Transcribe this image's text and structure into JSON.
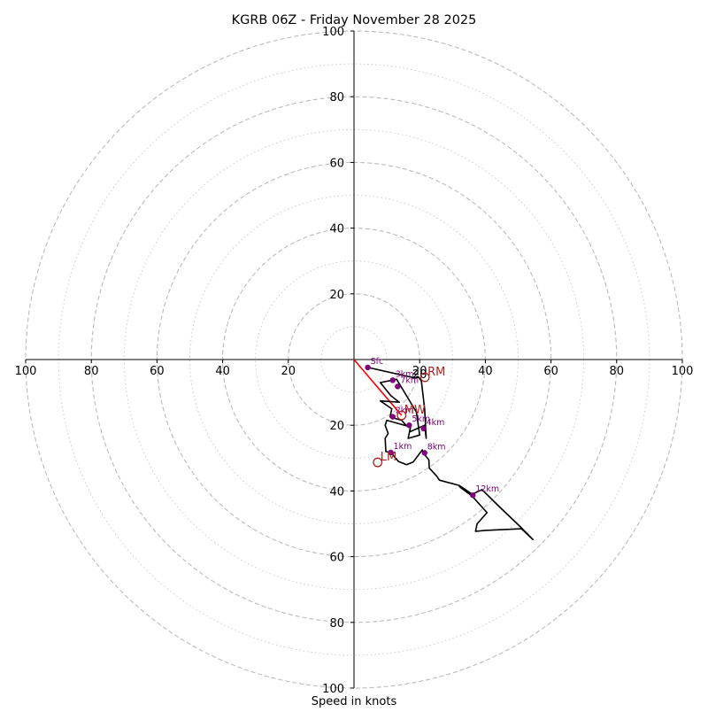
{
  "chart_data": {
    "type": "line",
    "title": "KGRB 06Z - Friday November 28 2025",
    "xlabel": "Speed in knots",
    "ylabel": "",
    "xlim": [
      -100,
      100
    ],
    "ylim": [
      -100,
      100
    ],
    "rings": [
      20,
      40,
      60,
      80,
      100
    ],
    "minor_rings": [
      10,
      30,
      50,
      70,
      90
    ],
    "axis_ticks": {
      "x_left": [
        "100",
        "80",
        "60",
        "40",
        "20"
      ],
      "x_right": [
        "20",
        "40",
        "60",
        "80",
        "100"
      ],
      "y_top": [
        "100",
        "80",
        "60",
        "40",
        "20"
      ],
      "y_bottom": [
        "20",
        "40",
        "60",
        "80",
        "100"
      ],
      "x_values_left": [
        -100,
        -80,
        -60,
        -40,
        -20
      ],
      "x_values_right": [
        20,
        40,
        60,
        80,
        100
      ],
      "y_values_top": [
        100,
        80,
        60,
        40,
        20
      ],
      "y_values_bottom": [
        -20,
        -40,
        -60,
        -80,
        -100
      ],
      "center_label": "20"
    },
    "series": [
      {
        "name": "hodograph",
        "color": "#000000",
        "points": [
          [
            4.2,
            -2.4
          ],
          [
            18.5,
            -5.6
          ],
          [
            19.5,
            -5.2
          ],
          [
            20.5,
            -6.5
          ],
          [
            21.5,
            -15
          ],
          [
            22,
            -24
          ],
          [
            21.5,
            -20
          ],
          [
            17,
            -22
          ],
          [
            17.2,
            -20.5
          ],
          [
            16.5,
            -24
          ],
          [
            20,
            -23
          ],
          [
            19,
            -16
          ],
          [
            13,
            -6
          ],
          [
            8,
            -7
          ],
          [
            11.2,
            -11
          ],
          [
            13.8,
            -13
          ],
          [
            8,
            -12.6
          ],
          [
            11.5,
            -15
          ],
          [
            11,
            -17.5
          ],
          [
            14.5,
            -18.5
          ],
          [
            16,
            -20.2
          ],
          [
            10,
            -18.5
          ],
          [
            9.5,
            -20
          ],
          [
            10.4,
            -22.5
          ],
          [
            9.5,
            -24
          ],
          [
            9.7,
            -28
          ],
          [
            11.2,
            -28.3
          ],
          [
            13.5,
            -31
          ],
          [
            16,
            -32
          ],
          [
            18,
            -31.2
          ],
          [
            20.8,
            -27.5
          ],
          [
            21,
            -28.3
          ],
          [
            22.8,
            -30.5
          ],
          [
            22.9,
            -33
          ],
          [
            25.2,
            -35.5
          ],
          [
            26,
            -36.7
          ],
          [
            32,
            -38.3
          ],
          [
            36,
            -41
          ],
          [
            39,
            -39.6
          ],
          [
            44.5,
            -45
          ],
          [
            51,
            -51.2
          ],
          [
            54.5,
            -54.8
          ],
          [
            51,
            -51.5
          ],
          [
            40,
            -52
          ],
          [
            37,
            -52.3
          ],
          [
            37.5,
            -50
          ],
          [
            40.5,
            -46.6
          ],
          [
            36,
            -41.6
          ],
          [
            32,
            -38.6
          ]
        ]
      }
    ],
    "points": [
      {
        "label": "Sfc",
        "x": 4.2,
        "y": -2.4
      },
      {
        "label": "3km",
        "x": 11.8,
        "y": -6.3
      },
      {
        "label": "7km",
        "x": 13.3,
        "y": -8.2
      },
      {
        "label": "2km",
        "x": 11.8,
        "y": -17.4
      },
      {
        "label": "5km",
        "x": 16.8,
        "y": -20.0
      },
      {
        "label": "4km",
        "x": 21.2,
        "y": -21.0
      },
      {
        "label": "1km",
        "x": 11.2,
        "y": -28.3
      },
      {
        "label": "8km",
        "x": 21.5,
        "y": -28.4
      },
      {
        "label": "12km",
        "x": 36.2,
        "y": -41.3
      }
    ],
    "storm_motion": [
      {
        "label": "RM",
        "x": 21.6,
        "y": -5.4
      },
      {
        "label": "LM",
        "x": 7.2,
        "y": -31.3
      },
      {
        "label": "MW",
        "x": 14.5,
        "y": -17.0
      }
    ],
    "critical_angle_line": {
      "x": [
        0,
        14.5
      ],
      "y": [
        0,
        -17.0
      ],
      "color": "#ff0000"
    },
    "colors": {
      "hodograph": "#000000",
      "points": "#800080",
      "storm_motion": "#b22222",
      "rings": "#bbbbbb",
      "axes": "#000000"
    }
  }
}
